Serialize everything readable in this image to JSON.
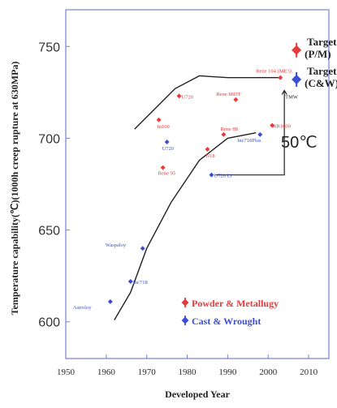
{
  "chart_data": {
    "type": "scatter",
    "xlabel": "Developed Year",
    "ylabel": "Temperature capability(℃)(1000h creep rupture at 630MPa)",
    "xlim": [
      1950,
      2015
    ],
    "ylim": [
      580,
      770
    ],
    "xticks": [
      1950,
      1960,
      1970,
      1980,
      1990,
      2000,
      2010
    ],
    "yticks": [
      600,
      650,
      700,
      750
    ],
    "series": [
      {
        "name": "Powder & Metallugy",
        "color": "#e83a3a",
        "points": [
          {
            "label": "In100",
            "x": 1973,
            "y": 710
          },
          {
            "label": "U720",
            "x": 1978,
            "y": 723
          },
          {
            "label": "Rene 95",
            "x": 1974,
            "y": 684
          },
          {
            "label": "N18",
            "x": 1985,
            "y": 694
          },
          {
            "label": "Rene 88",
            "x": 1989,
            "y": 702
          },
          {
            "label": "Rene 88DT",
            "x": 1992,
            "y": 721
          },
          {
            "label": "RR1000",
            "x": 2001,
            "y": 707
          },
          {
            "label": "Rene 104 (ME3)",
            "x": 2003,
            "y": 733
          }
        ]
      },
      {
        "name": "Cast & Wrought",
        "color": "#3b4fd6",
        "points": [
          {
            "label": "Astroloy",
            "x": 1961,
            "y": 611
          },
          {
            "label": "Inc718",
            "x": 1966,
            "y": 622
          },
          {
            "label": "Waspaloy",
            "x": 1969,
            "y": 640
          },
          {
            "label": "U720",
            "x": 1975,
            "y": 698
          },
          {
            "label": "U720 LI",
            "x": 1986,
            "y": 680
          },
          {
            "label": "Inc718Plus",
            "x": 1998,
            "y": 702
          }
        ]
      }
    ],
    "targets": [
      {
        "label": "Target (P/M)",
        "series": "Powder & Metallugy",
        "x": 2007,
        "y": 748
      },
      {
        "label": "Target (C&W)",
        "series": "Cast & Wrought",
        "x": 2007,
        "y": 732
      }
    ],
    "annotations": [
      {
        "text": "TMW",
        "x": 2005,
        "y": 723
      },
      {
        "text": "50℃"
      }
    ],
    "legend_position": "bottom-right",
    "grid": false
  }
}
